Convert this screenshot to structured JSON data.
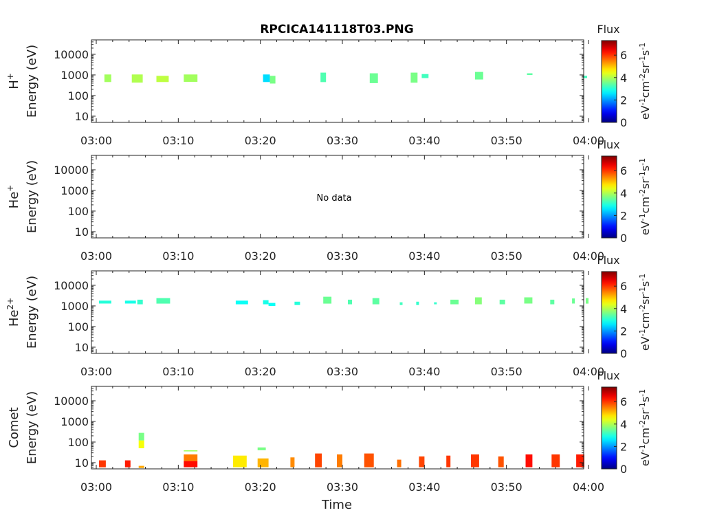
{
  "title": "RPCICA141118T03.PNG",
  "colorbar": {
    "label": "Flux",
    "unit": "eV-1cm-2sr-1s-1",
    "range": [
      0,
      7.3
    ],
    "ticks": [
      "0",
      "2",
      "4",
      "6"
    ],
    "colormap": "jet"
  },
  "chart_data": [
    {
      "type": "heatmap",
      "species": "H",
      "species_sup": "+",
      "ylabel_unit": "Energy (eV)",
      "xlabel": "",
      "x_ticks": [
        "03:00",
        "03:10",
        "03:20",
        "03:30",
        "03:40",
        "03:50",
        "04:00"
      ],
      "y_ticks": [
        "10",
        "100",
        "1000",
        "10000"
      ],
      "xlim": [
        "03:00",
        "04:00"
      ],
      "ylim_eV": [
        5,
        50000
      ],
      "y_scale": "log",
      "cells": [
        {
          "t0": "03:01:00",
          "t1": "03:01:50",
          "e0": 450,
          "e1": 1050,
          "v": 3.9
        },
        {
          "t0": "03:04:20",
          "t1": "03:05:40",
          "e0": 420,
          "e1": 1050,
          "v": 4.0
        },
        {
          "t0": "03:07:20",
          "t1": "03:08:50",
          "e0": 450,
          "e1": 900,
          "v": 4.1
        },
        {
          "t0": "03:10:40",
          "t1": "03:12:20",
          "e0": 460,
          "e1": 1050,
          "v": 3.9
        },
        {
          "t0": "03:20:20",
          "t1": "03:21:10",
          "e0": 450,
          "e1": 1050,
          "v": 2.5
        },
        {
          "t0": "03:21:10",
          "t1": "03:21:50",
          "e0": 380,
          "e1": 900,
          "v": 3.6
        },
        {
          "t0": "03:27:20",
          "t1": "03:28:00",
          "e0": 450,
          "e1": 1300,
          "v": 3.3
        },
        {
          "t0": "03:33:20",
          "t1": "03:34:20",
          "e0": 400,
          "e1": 1200,
          "v": 3.5
        },
        {
          "t0": "03:38:20",
          "t1": "03:39:10",
          "e0": 420,
          "e1": 1300,
          "v": 3.6
        },
        {
          "t0": "03:39:40",
          "t1": "03:40:30",
          "e0": 700,
          "e1": 1100,
          "v": 3.2
        },
        {
          "t0": "03:46:10",
          "t1": "03:47:10",
          "e0": 600,
          "e1": 1400,
          "v": 3.5
        },
        {
          "t0": "03:52:30",
          "t1": "03:53:10",
          "e0": 1000,
          "e1": 1200,
          "v": 3.4
        },
        {
          "t0": "03:59:20",
          "t1": "03:59:50",
          "e0": 700,
          "e1": 900,
          "v": 3.2
        }
      ]
    },
    {
      "type": "heatmap",
      "species": "He",
      "species_sup": "+",
      "ylabel_unit": "Energy (eV)",
      "xlabel": "",
      "x_ticks": [
        "03:00",
        "03:10",
        "03:20",
        "03:30",
        "03:40",
        "03:50",
        "04:00"
      ],
      "y_ticks": [
        "10",
        "100",
        "1000",
        "10000"
      ],
      "xlim": [
        "03:00",
        "04:00"
      ],
      "ylim_eV": [
        5,
        50000
      ],
      "y_scale": "log",
      "annotation": "No data",
      "cells": []
    },
    {
      "type": "heatmap",
      "species": "He",
      "species_sup": "2+",
      "ylabel_unit": "Energy (eV)",
      "xlabel": "",
      "x_ticks": [
        "03:00",
        "03:10",
        "03:20",
        "03:30",
        "03:40",
        "03:50",
        "04:00"
      ],
      "y_ticks": [
        "10",
        "100",
        "1000",
        "10000"
      ],
      "xlim": [
        "03:00",
        "04:00"
      ],
      "ylim_eV": [
        5,
        50000
      ],
      "y_scale": "log",
      "cells": [
        {
          "t0": "03:00:20",
          "t1": "03:01:50",
          "e0": 1300,
          "e1": 1800,
          "v": 3.0
        },
        {
          "t0": "03:03:30",
          "t1": "03:04:50",
          "e0": 1300,
          "e1": 1800,
          "v": 2.9
        },
        {
          "t0": "03:05:00",
          "t1": "03:05:40",
          "e0": 1200,
          "e1": 2000,
          "v": 3.1
        },
        {
          "t0": "03:07:20",
          "t1": "03:09:00",
          "e0": 1300,
          "e1": 2400,
          "v": 3.3
        },
        {
          "t0": "03:17:00",
          "t1": "03:18:30",
          "e0": 1200,
          "e1": 1800,
          "v": 2.8
        },
        {
          "t0": "03:20:20",
          "t1": "03:21:00",
          "e0": 1200,
          "e1": 1900,
          "v": 2.9
        },
        {
          "t0": "03:21:00",
          "t1": "03:21:50",
          "e0": 1000,
          "e1": 1400,
          "v": 2.8
        },
        {
          "t0": "03:24:10",
          "t1": "03:24:50",
          "e0": 1100,
          "e1": 1600,
          "v": 3.0
        },
        {
          "t0": "03:27:40",
          "t1": "03:28:40",
          "e0": 1300,
          "e1": 2800,
          "v": 3.5
        },
        {
          "t0": "03:30:40",
          "t1": "03:31:10",
          "e0": 1200,
          "e1": 2000,
          "v": 3.3
        },
        {
          "t0": "03:33:40",
          "t1": "03:34:30",
          "e0": 1200,
          "e1": 2400,
          "v": 3.4
        },
        {
          "t0": "03:37:00",
          "t1": "03:37:20",
          "e0": 1100,
          "e1": 1500,
          "v": 3.2
        },
        {
          "t0": "03:39:00",
          "t1": "03:39:20",
          "e0": 1100,
          "e1": 1600,
          "v": 3.1
        },
        {
          "t0": "03:41:10",
          "t1": "03:41:30",
          "e0": 1200,
          "e1": 1500,
          "v": 3.1
        },
        {
          "t0": "03:43:10",
          "t1": "03:44:10",
          "e0": 1200,
          "e1": 2000,
          "v": 3.5
        },
        {
          "t0": "03:46:10",
          "t1": "03:47:00",
          "e0": 1200,
          "e1": 2600,
          "v": 3.7
        },
        {
          "t0": "03:49:10",
          "t1": "03:49:50",
          "e0": 1200,
          "e1": 2000,
          "v": 3.4
        },
        {
          "t0": "03:52:10",
          "t1": "03:53:10",
          "e0": 1300,
          "e1": 2600,
          "v": 3.6
        },
        {
          "t0": "03:55:20",
          "t1": "03:55:50",
          "e0": 1200,
          "e1": 2000,
          "v": 3.4
        },
        {
          "t0": "03:58:00",
          "t1": "03:58:20",
          "e0": 1300,
          "e1": 2300,
          "v": 3.5
        },
        {
          "t0": "03:59:40",
          "t1": "04:00:00",
          "e0": 1300,
          "e1": 2400,
          "v": 3.6
        }
      ]
    },
    {
      "type": "heatmap",
      "species": "Comet",
      "species_sup": "",
      "ylabel_unit": "Energy (eV)",
      "xlabel": "Time",
      "x_ticks": [
        "03:00",
        "03:10",
        "03:20",
        "03:30",
        "03:40",
        "03:50",
        "04:00"
      ],
      "y_ticks": [
        "10",
        "100",
        "1000",
        "10000"
      ],
      "xlim": [
        "03:00",
        "04:00"
      ],
      "ylim_eV": [
        5,
        50000
      ],
      "y_scale": "log",
      "cells": [
        {
          "t0": "03:00:20",
          "t1": "03:01:10",
          "e0": 6,
          "e1": 13,
          "v": 6.0
        },
        {
          "t0": "03:03:30",
          "t1": "03:04:10",
          "e0": 6,
          "e1": 13,
          "v": 6.2
        },
        {
          "t0": "03:05:10",
          "t1": "03:05:50",
          "e0": 50,
          "e1": 120,
          "v": 4.5
        },
        {
          "t0": "03:05:10",
          "t1": "03:05:50",
          "e0": 120,
          "e1": 280,
          "v": 3.6
        },
        {
          "t0": "03:05:10",
          "t1": "03:05:50",
          "e0": 5.5,
          "e1": 7,
          "v": 5.2
        },
        {
          "t0": "03:10:40",
          "t1": "03:12:20",
          "e0": 6,
          "e1": 12,
          "v": 6.3
        },
        {
          "t0": "03:10:40",
          "t1": "03:12:20",
          "e0": 12,
          "e1": 25,
          "v": 5.5
        },
        {
          "t0": "03:10:40",
          "t1": "03:12:20",
          "e0": 35,
          "e1": 40,
          "v": 3.9
        },
        {
          "t0": "03:16:40",
          "t1": "03:18:20",
          "e0": 6,
          "e1": 22,
          "v": 4.7
        },
        {
          "t0": "03:19:40",
          "t1": "03:21:00",
          "e0": 6,
          "e1": 16,
          "v": 5.1
        },
        {
          "t0": "03:19:40",
          "t1": "03:20:40",
          "e0": 40,
          "e1": 55,
          "v": 3.6
        },
        {
          "t0": "03:23:40",
          "t1": "03:24:10",
          "e0": 6,
          "e1": 18,
          "v": 5.4
        },
        {
          "t0": "03:26:40",
          "t1": "03:27:30",
          "e0": 6,
          "e1": 28,
          "v": 5.9
        },
        {
          "t0": "03:29:20",
          "t1": "03:30:00",
          "e0": 6,
          "e1": 25,
          "v": 5.5
        },
        {
          "t0": "03:32:40",
          "t1": "03:33:50",
          "e0": 6,
          "e1": 28,
          "v": 5.8
        },
        {
          "t0": "03:36:40",
          "t1": "03:37:10",
          "e0": 6,
          "e1": 14,
          "v": 5.6
        },
        {
          "t0": "03:39:20",
          "t1": "03:40:00",
          "e0": 6,
          "e1": 20,
          "v": 5.9
        },
        {
          "t0": "03:42:40",
          "t1": "03:43:10",
          "e0": 6,
          "e1": 22,
          "v": 6.0
        },
        {
          "t0": "03:45:40",
          "t1": "03:46:40",
          "e0": 6,
          "e1": 25,
          "v": 6.0
        },
        {
          "t0": "03:49:00",
          "t1": "03:49:40",
          "e0": 6,
          "e1": 20,
          "v": 5.8
        },
        {
          "t0": "03:52:20",
          "t1": "03:53:10",
          "e0": 6,
          "e1": 25,
          "v": 6.3
        },
        {
          "t0": "03:55:30",
          "t1": "03:56:30",
          "e0": 6,
          "e1": 25,
          "v": 6.0
        },
        {
          "t0": "03:58:30",
          "t1": "03:59:30",
          "e0": 6,
          "e1": 25,
          "v": 6.2
        }
      ]
    }
  ]
}
